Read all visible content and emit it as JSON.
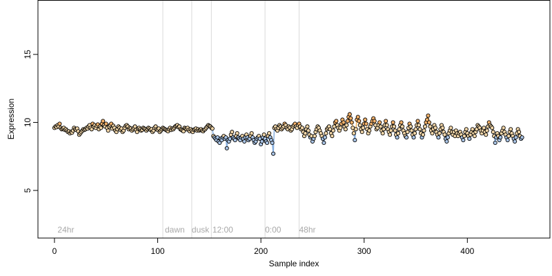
{
  "chart_data": {
    "type": "scatter",
    "title": "",
    "xlabel": "Sample index",
    "ylabel": "Expression",
    "xlim": [
      -16,
      480
    ],
    "ylim": [
      1.5,
      19
    ],
    "xticks": [
      0,
      100,
      200,
      300,
      400
    ],
    "yticks": [
      5,
      10,
      15
    ],
    "grid": false,
    "region_lines": [
      105,
      133,
      152,
      204,
      237
    ],
    "region_labels": [
      {
        "x": 3,
        "text": "24hr"
      },
      {
        "x": 107,
        "text": "dawn"
      },
      {
        "x": 133,
        "text": "dusk"
      },
      {
        "x": 153,
        "text": "12:00"
      },
      {
        "x": 204,
        "text": "0:00"
      },
      {
        "x": 237,
        "text": "48hr"
      }
    ],
    "colors": {
      "point_stroke": "#000000",
      "point_fill_default": "#f2d6a8",
      "point_fill_low": "#a9c4e6",
      "point_fill_high": "#f5b26b",
      "trace_low": "#6f9fd8",
      "trace_high": "#f0a23a",
      "region_line": "#d9d9d9",
      "region_text": "#a8a8a8"
    },
    "series": [
      {
        "values": [
          9.6,
          9.7,
          9.65,
          9.8,
          9.7,
          9.9,
          9.6,
          9.5,
          9.55,
          9.6,
          9.45,
          9.5,
          9.4,
          9.3,
          9.35,
          9.2,
          9.3,
          9.25,
          9.4,
          9.6,
          9.5,
          9.45,
          9.55,
          9.35,
          9.1,
          9.2,
          9.3,
          9.4,
          9.5,
          9.45,
          9.5,
          9.6,
          9.55,
          9.7,
          9.8,
          9.6,
          9.5,
          9.9,
          9.7,
          9.8,
          9.6,
          9.75,
          9.85,
          9.5,
          9.7,
          9.6,
          9.9,
          10.1,
          9.8,
          9.7,
          9.9,
          9.6,
          9.4,
          9.7,
          9.8,
          9.9,
          9.55,
          9.75,
          9.6,
          9.4,
          9.3,
          9.5,
          9.7,
          9.6,
          9.45,
          9.55,
          9.3,
          9.4,
          9.6,
          9.75,
          9.8,
          9.7,
          9.5,
          9.6,
          9.55,
          9.4,
          9.5,
          9.6,
          9.7,
          9.45,
          9.3,
          9.55,
          9.6,
          9.5,
          9.4,
          9.45,
          9.6,
          9.55,
          9.5,
          9.4,
          9.5,
          9.6,
          9.55,
          9.45,
          9.5,
          9.3,
          9.4,
          9.6,
          9.7,
          9.5,
          9.45,
          9.55,
          9.3,
          9.4,
          9.5,
          9.6,
          9.55,
          9.5,
          9.45,
          9.4,
          9.35,
          9.5,
          9.6,
          9.45,
          9.55,
          9.5,
          9.6,
          9.7,
          9.75,
          9.8,
          9.65,
          9.7,
          9.5,
          9.45,
          9.4,
          9.35,
          9.6,
          9.55,
          9.5,
          9.6,
          9.45,
          9.35,
          9.5,
          9.4,
          9.3,
          9.45,
          9.5,
          9.55,
          9.4,
          9.5,
          9.4,
          9.45,
          9.5,
          9.4,
          9.35,
          9.45,
          9.5,
          9.6,
          9.7,
          9.8,
          9.75,
          9.7,
          9.6,
          9.55,
          9.0,
          8.9,
          8.8,
          8.7,
          8.9,
          8.6,
          8.5,
          8.8,
          8.7,
          8.9,
          9.0,
          8.8,
          8.9,
          8.1,
          8.7,
          8.6,
          8.8,
          9.1,
          9.3,
          8.9,
          8.8,
          8.7,
          9.0,
          9.2,
          8.9,
          8.8,
          8.7,
          8.9,
          9.0,
          8.8,
          8.6,
          8.9,
          9.1,
          8.9,
          8.7,
          8.8,
          9.0,
          9.2,
          8.9,
          8.7,
          8.5,
          8.6,
          8.8,
          8.9,
          9.0,
          8.8,
          8.4,
          8.6,
          8.9,
          9.1,
          8.8,
          8.6,
          8.5,
          9.0,
          9.2,
          8.9,
          8.7,
          8.5,
          7.7,
          9.6,
          9.7,
          9.5,
          9.4,
          9.6,
          9.8,
          9.7,
          9.5,
          9.6,
          9.7,
          9.9,
          9.8,
          9.6,
          9.5,
          9.7,
          9.6,
          9.4,
          9.5,
          9.7,
          9.8,
          9.9,
          9.7,
          9.6,
          9.8,
          9.9,
          9.7,
          9.5,
          9.6,
          9.3,
          9.0,
          9.2,
          9.5,
          9.7,
          9.4,
          9.1,
          8.9,
          9.0,
          8.6,
          8.8,
          9.0,
          9.3,
          9.5,
          9.7,
          9.6,
          9.4,
          9.2,
          9.0,
          8.8,
          8.5,
          8.9,
          9.2,
          9.5,
          9.6,
          9.7,
          9.5,
          9.2,
          9.0,
          9.4,
          9.7,
          10.0,
          10.1,
          9.8,
          9.6,
          9.4,
          9.6,
          9.9,
          10.2,
          10.0,
          9.7,
          9.5,
          9.8,
          10.1,
          10.4,
          10.6,
          10.3,
          10.0,
          9.6,
          9.2,
          8.7,
          9.5,
          10.2,
          10.4,
          10.1,
          9.8,
          9.5,
          9.3,
          9.6,
          9.9,
          10.2,
          9.9,
          9.5,
          9.2,
          9.4,
          9.7,
          9.9,
          10.1,
          10.3,
          10.1,
          9.8,
          9.5,
          9.6,
          9.8,
          10.0,
          9.7,
          9.4,
          9.2,
          9.5,
          9.8,
          10.1,
          9.8,
          9.5,
          9.3,
          9.1,
          9.4,
          9.7,
          10.0,
          9.7,
          9.4,
          9.1,
          8.9,
          9.2,
          9.5,
          9.8,
          10.0,
          9.7,
          9.4,
          9.2,
          9.0,
          8.9,
          9.3,
          9.6,
          9.9,
          9.7,
          9.4,
          9.1,
          8.9,
          9.2,
          9.5,
          9.8,
          10.1,
          9.8,
          9.5,
          9.2,
          8.9,
          9.1,
          9.4,
          9.7,
          10.0,
          10.2,
          10.5,
          10.0,
          9.7,
          9.4,
          9.2,
          9.5,
          9.8,
          9.6,
          9.3,
          9.1,
          8.9,
          9.2,
          9.5,
          9.8,
          9.6,
          9.3,
          9.1,
          8.8,
          8.6,
          8.9,
          9.2,
          9.4,
          9.6,
          9.3,
          9.1,
          9.3,
          9.0,
          9.4,
          9.2,
          9.0,
          9.2,
          9.3,
          9.1,
          8.9,
          8.7,
          9.0,
          9.3,
          9.5,
          9.2,
          9.0,
          8.8,
          9.1,
          9.3,
          9.5,
          9.2,
          9.0,
          9.3,
          9.5,
          9.8,
          9.7,
          9.6,
          9.4,
          9.2,
          9.4,
          9.6,
          9.3,
          9.1,
          9.4,
          9.7,
          10.0,
          9.8,
          9.7,
          9.6,
          9.3,
          9.0,
          8.5,
          8.9,
          9.2,
          9.0,
          8.7,
          8.9,
          9.2,
          9.4,
          9.6,
          9.3,
          9.1,
          8.9,
          8.7,
          9.0,
          9.3,
          9.5,
          9.2,
          9.0,
          8.8,
          8.6,
          8.9,
          9.2,
          9.5,
          9.3,
          9.0,
          8.8,
          8.9
        ]
      }
    ]
  }
}
